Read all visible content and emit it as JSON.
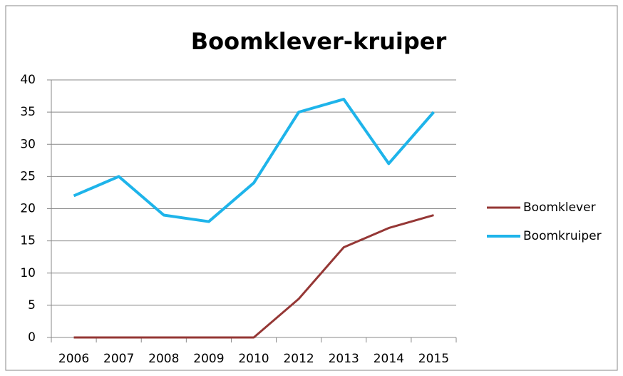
{
  "chart_data": {
    "type": "line",
    "title": "Boomklever-kruiper",
    "categories": [
      "2006",
      "2007",
      "2008",
      "2009",
      "2010",
      "2012",
      "2013",
      "2014",
      "2015"
    ],
    "series": [
      {
        "name": "Boomklever",
        "color": "#953735",
        "values": [
          0,
          0,
          0,
          0,
          0,
          6,
          14,
          17,
          19
        ]
      },
      {
        "name": "Boomkruiper",
        "color": "#1eb4ea",
        "values": [
          22,
          25,
          19,
          18,
          24,
          35,
          37,
          27,
          35
        ]
      }
    ],
    "ylim": [
      0,
      40
    ],
    "yticks": [
      0,
      5,
      10,
      15,
      20,
      25,
      30,
      35,
      40
    ],
    "grid": true,
    "legend": "right"
  }
}
